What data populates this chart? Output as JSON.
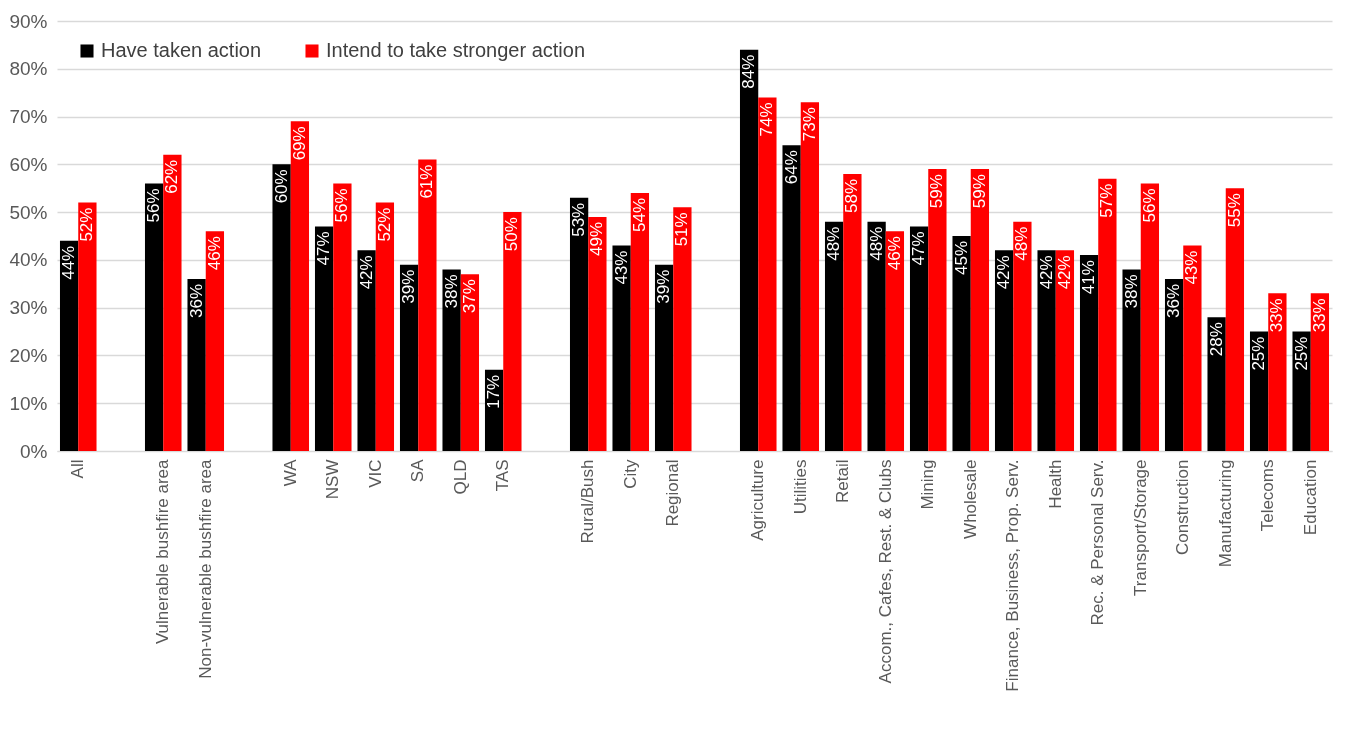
{
  "chart_data": {
    "type": "bar",
    "categories": [
      "All",
      null,
      "Vulnerable bushfire area",
      "Non-vulnerable bushfire area",
      null,
      "WA",
      "NSW",
      "VIC",
      "SA",
      "QLD",
      "TAS",
      null,
      "Rural/Bush",
      "City",
      "Regional",
      null,
      "Agriculture",
      "Utilities",
      "Retail",
      "Accom., Cafes, Rest. & Clubs",
      "Mining",
      "Wholesale",
      "Finance, Business, Prop. Serv.",
      "Health",
      "Rec. & Personal Serv.",
      "Transport/Storage",
      "Construction",
      "Manufacturing",
      "Telecoms",
      "Education"
    ],
    "series": [
      {
        "name": "Have taken action",
        "color": "#000000",
        "values": [
          44,
          null,
          56,
          36,
          null,
          60,
          47,
          42,
          39,
          38,
          17,
          null,
          53,
          43,
          39,
          null,
          84,
          64,
          48,
          48,
          47,
          45,
          42,
          42,
          41,
          38,
          36,
          28,
          25,
          25
        ],
        "value_labels": [
          "44%",
          null,
          "56%",
          "36%",
          null,
          "60%",
          "47%",
          "42%",
          "39%",
          "38%",
          "17%",
          null,
          "53%",
          "43%",
          "39%",
          null,
          "84%",
          "64%",
          "48%",
          "48%",
          "47%",
          "45%",
          "42%",
          "42%",
          "41%",
          "38%",
          "36%",
          "28%",
          "25%",
          "25%"
        ]
      },
      {
        "name": "Intend to take stronger action",
        "color": "#ff0000",
        "values": [
          52,
          null,
          62,
          46,
          null,
          69,
          56,
          52,
          61,
          37,
          50,
          null,
          49,
          54,
          51,
          null,
          74,
          73,
          58,
          46,
          59,
          59,
          48,
          42,
          57,
          56,
          43,
          55,
          33,
          33
        ],
        "value_labels": [
          "52%",
          null,
          "62%",
          "46%",
          null,
          "69%",
          "56%",
          "52%",
          "61%",
          "37%",
          "50%",
          null,
          "49%",
          "54%",
          "51%",
          null,
          "74%",
          "73%",
          "58%",
          "46%",
          "59%",
          "59%",
          "48%",
          "42%",
          "57%",
          "56%",
          "43%",
          "55%",
          "33%",
          "33%"
        ]
      }
    ],
    "ylim": [
      0,
      90
    ],
    "yticks": [
      {
        "value": 0,
        "label": "0%"
      },
      {
        "value": 10,
        "label": "10%"
      },
      {
        "value": 20,
        "label": "20%"
      },
      {
        "value": 30,
        "label": "30%"
      },
      {
        "value": 40,
        "label": "40%"
      },
      {
        "value": 50,
        "label": "50%"
      },
      {
        "value": 60,
        "label": "60%"
      },
      {
        "value": 70,
        "label": "70%"
      },
      {
        "value": 80,
        "label": "80%"
      },
      {
        "value": 90,
        "label": "90%"
      }
    ],
    "grid": "y",
    "legend": "top left"
  }
}
